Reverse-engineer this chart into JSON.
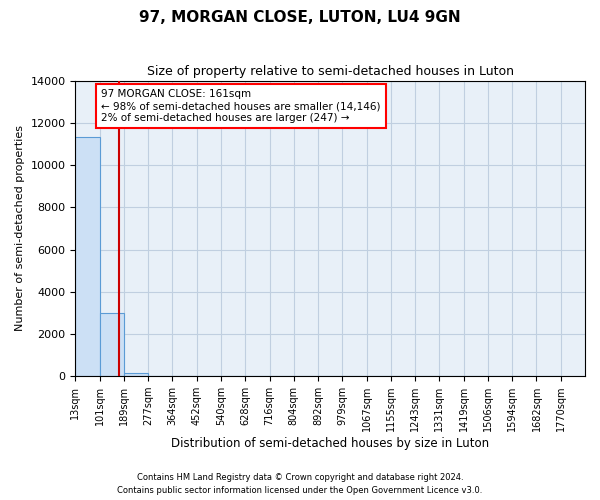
{
  "title": "97, MORGAN CLOSE, LUTON, LU4 9GN",
  "subtitle": "Size of property relative to semi-detached houses in Luton",
  "xlabel": "Distribution of semi-detached houses by size in Luton",
  "ylabel": "Number of semi-detached properties",
  "annotation_line1": "97 MORGAN CLOSE: 161sqm",
  "annotation_line2": "← 98% of semi-detached houses are smaller (14,146)",
  "annotation_line3": "2% of semi-detached houses are larger (247) →",
  "bin_labels": [
    "13sqm",
    "101sqm",
    "189sqm",
    "277sqm",
    "364sqm",
    "452sqm",
    "540sqm",
    "628sqm",
    "716sqm",
    "804sqm",
    "892sqm",
    "979sqm",
    "1067sqm",
    "1155sqm",
    "1243sqm",
    "1331sqm",
    "1419sqm",
    "1506sqm",
    "1594sqm",
    "1682sqm",
    "1770sqm"
  ],
  "counts": [
    11350,
    3000,
    130,
    30,
    10,
    5,
    3,
    2,
    2,
    2,
    1,
    1,
    1,
    1,
    1,
    1,
    1,
    1,
    1,
    1
  ],
  "bar_color": "#cce0f5",
  "bar_edge_color": "#5b9bd5",
  "vline_color": "#cc0000",
  "vline_bin_index": 1.8,
  "background_color": "#e8f0f8",
  "grid_color": "#c0cfe0",
  "ylim": [
    0,
    14000
  ],
  "yticks": [
    0,
    2000,
    4000,
    6000,
    8000,
    10000,
    12000,
    14000
  ],
  "footer_line1": "Contains HM Land Registry data © Crown copyright and database right 2024.",
  "footer_line2": "Contains public sector information licensed under the Open Government Licence v3.0."
}
